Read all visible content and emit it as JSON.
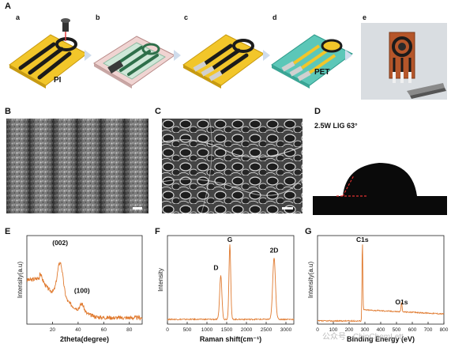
{
  "panel_labels": {
    "A": "A",
    "B": "B",
    "C": "C",
    "D": "D",
    "E": "E",
    "F": "F",
    "G": "G"
  },
  "sub_labels": {
    "a": "a",
    "b": "b",
    "c": "c",
    "d": "d",
    "e": "e"
  },
  "step_labels": {
    "pi": "PI",
    "pet": "PET"
  },
  "contact_angle": {
    "label": "2.5W LIG 63°"
  },
  "watermark": "公众号 · ChinChemLett",
  "colors": {
    "curve": "#e07a2f",
    "electrode": "#1b1b1b",
    "pi": "#f2c62a",
    "pet": "#5cc7b8"
  },
  "chart_data": [
    {
      "panel": "E",
      "type": "line",
      "xlabel": "2theta(degree)",
      "ylabel": "Intensity(a.u)",
      "xlim": [
        0,
        90
      ],
      "xticks": [
        20,
        40,
        60,
        80
      ],
      "annotations": [
        {
          "text": "(002)",
          "x": 26
        },
        {
          "text": "(100)",
          "x": 43
        }
      ],
      "peaks": [
        {
          "x": 26,
          "height": 1.0,
          "width": 2.2
        },
        {
          "x": 43,
          "height": 0.22,
          "width": 1.5
        }
      ]
    },
    {
      "panel": "F",
      "type": "line",
      "xlabel": "Raman shift(cm⁻¹)",
      "ylabel": "Intensity",
      "xlim": [
        0,
        3200
      ],
      "xticks": [
        0,
        500,
        1000,
        1500,
        2000,
        2500,
        3000
      ],
      "annotations": [
        {
          "text": "D",
          "x": 1350
        },
        {
          "text": "G",
          "x": 1580
        },
        {
          "text": "2D",
          "x": 2700
        }
      ],
      "peaks": [
        {
          "x": 1350,
          "height": 0.55,
          "width": 28
        },
        {
          "x": 1580,
          "height": 0.95,
          "width": 22
        },
        {
          "x": 2700,
          "height": 0.77,
          "width": 35
        }
      ]
    },
    {
      "panel": "G",
      "type": "line",
      "xlabel": "Binding Energy (eV)",
      "ylabel": "Intensity(a.u)",
      "xlim": [
        0,
        800
      ],
      "xticks": [
        0,
        100,
        200,
        300,
        400,
        500,
        600,
        700,
        800
      ],
      "annotations": [
        {
          "text": "C1s",
          "x": 284
        },
        {
          "text": "O1s",
          "x": 532
        }
      ],
      "peaks": [
        {
          "x": 284,
          "height": 1.0,
          "width": 2.5
        },
        {
          "x": 532,
          "height": 0.12,
          "width": 3
        }
      ]
    }
  ]
}
